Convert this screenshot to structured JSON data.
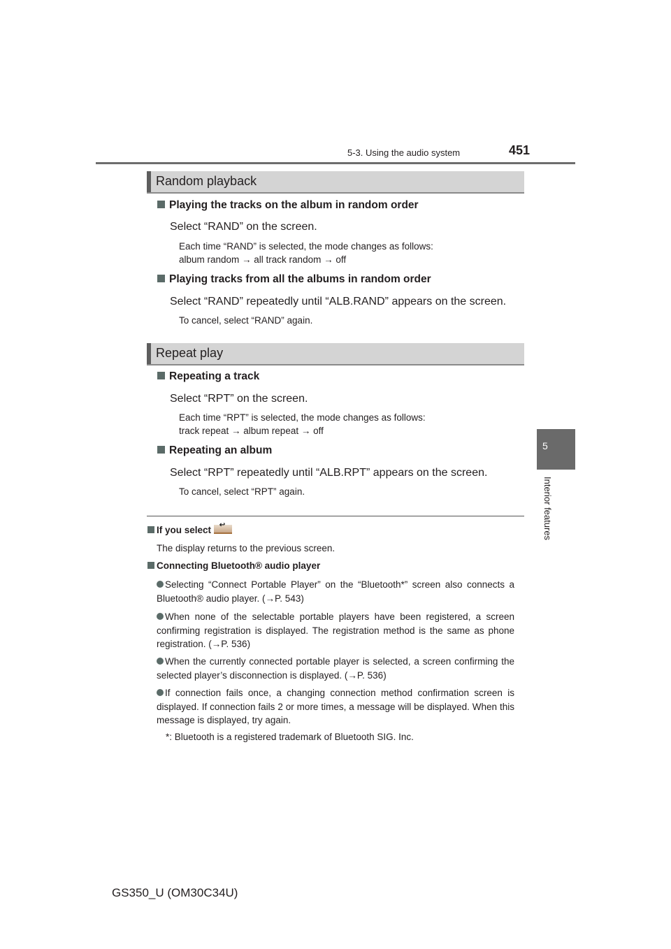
{
  "header": {
    "section": "5-3. Using the audio system",
    "page_number": "451"
  },
  "side_tab": {
    "chapter": "5",
    "label": "Interior features"
  },
  "random": {
    "title": "Random playback",
    "h1": "Playing the tracks on the album in random order",
    "s1": "Select “RAND” on the screen.",
    "n1a": "Each time “RAND” is selected, the mode changes as follows:",
    "n1b": "album random → all track random → off",
    "h2": "Playing tracks from all the albums in random order",
    "s2": "Select “RAND” repeatedly until “ALB.RAND” appears on the screen.",
    "n2": "To cancel, select “RAND” again."
  },
  "repeat": {
    "title": "Repeat play",
    "h1": "Repeating a track",
    "s1": "Select “RPT” on the screen.",
    "n1a": "Each time “RPT” is selected, the mode changes as follows:",
    "n1b": "track repeat → album repeat → off",
    "h2": "Repeating an album",
    "s2": "Select “RPT” repeatedly until “ALB.RPT” appears on the screen.",
    "n2": "To cancel, select “RPT” again."
  },
  "notes": {
    "if_select": "If you select",
    "if_select_icon": "back-icon",
    "if_select_text": "The display returns to the previous screen.",
    "connecting": "Connecting Bluetooth® audio player",
    "bullets": [
      "Selecting “Connect Portable Player” on the “Bluetooth*” screen also connects a Bluetooth® audio player. (→P. 543)",
      "When none of the selectable portable players have been registered, a screen confirming registration is displayed. The registration method is the same as phone registration. (→P. 536)",
      "When the currently connected portable player is selected, a screen confirming the selected player’s disconnection is displayed. (→P. 536)",
      "If connection fails once, a changing connection method confirmation screen is displayed. If connection fails 2 or more times, a message will be displayed. When this message is displayed, try again."
    ],
    "footnote": "*: Bluetooth is a registered trademark of Bluetooth SIG. Inc."
  },
  "footer": {
    "model": "GS350_U (OM30C34U)"
  }
}
